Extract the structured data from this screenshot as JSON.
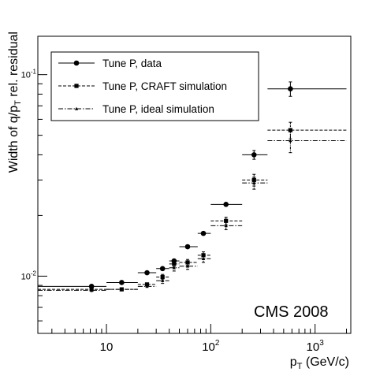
{
  "chart_data": {
    "type": "scatter",
    "title": "",
    "annotation": "CMS 2008",
    "xlabel": {
      "main": "p",
      "sub": "T",
      "rest": " (GeV/c)"
    },
    "ylabel": {
      "main": "Width of q/p",
      "sub": "T",
      "rest": " rel. residual"
    },
    "x_scale": "log",
    "y_scale": "log",
    "xlim": [
      2.2,
      2200
    ],
    "ylim": [
      0.0052,
      0.155
    ],
    "x_ticks": [
      {
        "value": 10,
        "base": "10",
        "exp": ""
      },
      {
        "value": 100,
        "base": "10",
        "exp": "2"
      },
      {
        "value": 1000,
        "base": "10",
        "exp": "3"
      }
    ],
    "y_ticks": [
      {
        "value": 0.01,
        "base": "10",
        "exp": "-2"
      },
      {
        "value": 0.1,
        "base": "10",
        "exp": "-1"
      }
    ],
    "grid": false,
    "legend_position": "top-left",
    "series": [
      {
        "name": "Tune P, data",
        "marker": "circle",
        "line_style": "solid",
        "points": [
          {
            "x": 7.2,
            "x_lo": 2.2,
            "x_hi": 10,
            "y": 0.0089,
            "y_err": 0.0001
          },
          {
            "x": 14,
            "x_lo": 10,
            "x_hi": 20,
            "y": 0.0093,
            "y_err": 0.0001
          },
          {
            "x": 24.5,
            "x_lo": 20,
            "x_hi": 30,
            "y": 0.0104,
            "y_err": 0.0001
          },
          {
            "x": 34.5,
            "x_lo": 30,
            "x_hi": 40,
            "y": 0.0109,
            "y_err": 0.0001
          },
          {
            "x": 44.5,
            "x_lo": 40,
            "x_hi": 50,
            "y": 0.0119,
            "y_err": 0.0002
          },
          {
            "x": 60,
            "x_lo": 50,
            "x_hi": 75,
            "y": 0.014,
            "y_err": 0.0002
          },
          {
            "x": 85,
            "x_lo": 75,
            "x_hi": 100,
            "y": 0.0163,
            "y_err": 0.0003
          },
          {
            "x": 140,
            "x_lo": 100,
            "x_hi": 200,
            "y": 0.0227,
            "y_err": 0.0004
          },
          {
            "x": 260,
            "x_lo": 200,
            "x_hi": 350,
            "y": 0.04,
            "y_err": 0.002
          },
          {
            "x": 580,
            "x_lo": 350,
            "x_hi": 2000,
            "y": 0.085,
            "y_err": 0.007
          }
        ]
      },
      {
        "name": "Tune P, CRAFT simulation",
        "marker": "square",
        "line_style": "dashed",
        "points": [
          {
            "x": 7.2,
            "x_lo": 2.2,
            "x_hi": 10,
            "y": 0.0086,
            "y_err": 0.0002
          },
          {
            "x": 14,
            "x_lo": 10,
            "x_hi": 20,
            "y": 0.0086,
            "y_err": 0.0001
          },
          {
            "x": 24.5,
            "x_lo": 20,
            "x_hi": 30,
            "y": 0.0091,
            "y_err": 0.0002
          },
          {
            "x": 34.5,
            "x_lo": 30,
            "x_hi": 40,
            "y": 0.0099,
            "y_err": 0.0003
          },
          {
            "x": 44.5,
            "x_lo": 40,
            "x_hi": 50,
            "y": 0.0115,
            "y_err": 0.0004
          },
          {
            "x": 60,
            "x_lo": 50,
            "x_hi": 75,
            "y": 0.0117,
            "y_err": 0.0004
          },
          {
            "x": 85,
            "x_lo": 75,
            "x_hi": 100,
            "y": 0.0127,
            "y_err": 0.0005
          },
          {
            "x": 140,
            "x_lo": 100,
            "x_hi": 200,
            "y": 0.0188,
            "y_err": 0.0008
          },
          {
            "x": 260,
            "x_lo": 200,
            "x_hi": 350,
            "y": 0.03,
            "y_err": 0.002
          },
          {
            "x": 580,
            "x_lo": 350,
            "x_hi": 2000,
            "y": 0.053,
            "y_err": 0.005
          }
        ]
      },
      {
        "name": "Tune P, ideal simulation",
        "marker": "triangle",
        "line_style": "dashdot",
        "points": [
          {
            "x": 7.2,
            "x_lo": 2.2,
            "x_hi": 10,
            "y": 0.0085,
            "y_err": 0.0002
          },
          {
            "x": 14,
            "x_lo": 10,
            "x_hi": 20,
            "y": 0.0086,
            "y_err": 0.0001
          },
          {
            "x": 24.5,
            "x_lo": 20,
            "x_hi": 30,
            "y": 0.0089,
            "y_err": 0.0002
          },
          {
            "x": 34.5,
            "x_lo": 30,
            "x_hi": 40,
            "y": 0.0095,
            "y_err": 0.0003
          },
          {
            "x": 44.5,
            "x_lo": 40,
            "x_hi": 50,
            "y": 0.011,
            "y_err": 0.0004
          },
          {
            "x": 60,
            "x_lo": 50,
            "x_hi": 75,
            "y": 0.0112,
            "y_err": 0.0004
          },
          {
            "x": 85,
            "x_lo": 75,
            "x_hi": 100,
            "y": 0.0122,
            "y_err": 0.0005
          },
          {
            "x": 140,
            "x_lo": 100,
            "x_hi": 200,
            "y": 0.0178,
            "y_err": 0.0008
          },
          {
            "x": 260,
            "x_lo": 200,
            "x_hi": 350,
            "y": 0.029,
            "y_err": 0.002
          },
          {
            "x": 580,
            "x_lo": 350,
            "x_hi": 2000,
            "y": 0.047,
            "y_err": 0.006
          }
        ]
      }
    ]
  }
}
